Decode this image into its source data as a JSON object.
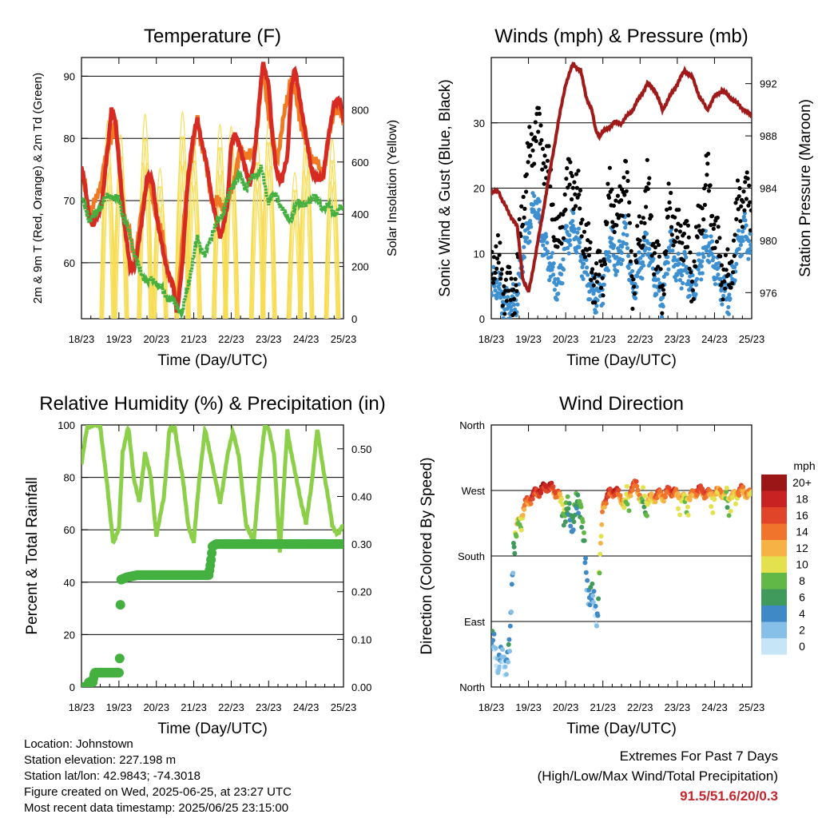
{
  "info": {
    "location": "Location: Johnstown",
    "elevation": "Station elevation: 227.198 m",
    "latlon": "Station lat/lon: 42.9843; -74.3018",
    "created": "Figure created on Wed, 2025-06-25, at 23:27 UTC",
    "timestamp": "Most recent data timestamp: 2025/06/25 23:15:00"
  },
  "extremes": {
    "line1": "Extremes For Past 7 Days",
    "line2": "(High/Low/Max Wind/Total Precipitation)",
    "values": "91.5/51.6/20/0.3"
  },
  "colors": {
    "temp_2m": "#d62a22",
    "temp_9m": "#f07a23",
    "dewpoint": "#44b040",
    "solar": "#f7dd55",
    "wind": "#3c8fd0",
    "gust": "#000000",
    "pressure": "#a01a1a",
    "rh": "#8cd04a",
    "precip": "#44b040"
  },
  "chart_data": [
    {
      "type": "line",
      "title": "Temperature (F)",
      "xlabel": "Time (Day/UTC)",
      "ylabel": "2m & 9m T (Red, Orange) & 2m Td (Green)",
      "y2label": "Solar Insolation (Yellow)",
      "x": [
        "18/23",
        "19/23",
        "20/23",
        "21/23",
        "22/23",
        "23/23",
        "24/23",
        "25/23"
      ],
      "xlim": [
        0,
        7
      ],
      "ylim": [
        51,
        93
      ],
      "y2lim": [
        0,
        1000
      ],
      "yticks": [
        60,
        70,
        80,
        90
      ],
      "y2ticks": [
        0,
        200,
        400,
        600,
        800
      ],
      "grid": true,
      "series": [
        {
          "name": "2m T",
          "axis": "left",
          "x": [
            0,
            0.1,
            0.2,
            0.3,
            0.4,
            0.55,
            0.7,
            0.8,
            0.9,
            1.0,
            1.15,
            1.3,
            1.45,
            1.6,
            1.75,
            1.9,
            2.05,
            2.2,
            2.35,
            2.45,
            2.55,
            2.7,
            2.85,
            2.95,
            3.1,
            3.3,
            3.5,
            3.7,
            3.9,
            4.0,
            4.1,
            4.25,
            4.4,
            4.5,
            4.6,
            4.75,
            4.85,
            5.0,
            5.1,
            5.2,
            5.35,
            5.5,
            5.6,
            5.7,
            5.85,
            6.0,
            6.15,
            6.3,
            6.45,
            6.6,
            6.75,
            6.9,
            7.0
          ],
          "y": [
            75.5,
            72,
            68,
            66,
            67,
            70,
            78,
            85,
            83,
            76,
            66,
            59,
            60,
            66,
            74,
            73,
            66,
            61,
            58,
            56,
            52,
            60,
            74,
            79,
            83,
            77,
            70,
            64,
            69,
            79,
            81,
            78,
            75,
            72,
            76,
            86,
            92,
            89,
            80,
            75,
            73,
            77,
            88,
            91,
            86,
            80,
            75,
            73,
            74,
            80,
            86,
            86,
            83
          ]
        },
        {
          "name": "9m T",
          "axis": "left",
          "x": [
            0,
            0.2,
            0.4,
            0.7,
            0.9,
            1.15,
            1.45,
            1.75,
            2.05,
            2.35,
            2.55,
            2.85,
            3.1,
            3.5,
            3.9,
            4.25,
            4.6,
            4.85,
            5.2,
            5.6,
            6.0,
            6.45,
            6.75,
            7.0
          ],
          "y": [
            75,
            68,
            70,
            78,
            83,
            67,
            61,
            74,
            67,
            58,
            53,
            74,
            83,
            70,
            69,
            78,
            77,
            91,
            76,
            90,
            79,
            74,
            85,
            83
          ]
        },
        {
          "name": "2m Td",
          "axis": "left",
          "x": [
            0,
            0.2,
            0.4,
            0.6,
            0.8,
            1.0,
            1.2,
            1.4,
            1.6,
            1.8,
            2.0,
            2.2,
            2.4,
            2.55,
            2.7,
            2.9,
            3.1,
            3.3,
            3.5,
            3.7,
            3.9,
            4.0,
            4.2,
            4.4,
            4.6,
            4.8,
            5.0,
            5.2,
            5.4,
            5.6,
            5.8,
            6.0,
            6.2,
            6.4,
            6.6,
            6.8,
            7.0
          ],
          "y": [
            70.5,
            67,
            68,
            70,
            71,
            70,
            66,
            62,
            58,
            57,
            57,
            55,
            54,
            53,
            52,
            58,
            64,
            61,
            65,
            67,
            70,
            72,
            74,
            72,
            74,
            75,
            70,
            71,
            68,
            67,
            70,
            69,
            71,
            69,
            69,
            68,
            69
          ]
        },
        {
          "name": "Solar",
          "axis": "right",
          "peaks_x": [
            0.7,
            1.05,
            1.7,
            2.1,
            2.7,
            3.0,
            3.7,
            4.0,
            4.7,
            5.0,
            5.7,
            6.0,
            6.7
          ],
          "peaks_y": [
            950,
            880,
            980,
            720,
            990,
            860,
            930,
            920,
            850,
            960,
            700,
            930,
            860
          ]
        }
      ]
    },
    {
      "type": "scatter",
      "title": "Winds (mph) & Pressure (mb)",
      "xlabel": "Time (Day/UTC)",
      "ylabel": "Sonic Wind & Gust (Blue, Black)",
      "y2label": "Station Pressure (Maroon)",
      "x": [
        "18/23",
        "19/23",
        "20/23",
        "21/23",
        "22/23",
        "23/23",
        "24/23",
        "25/23"
      ],
      "xlim": [
        0,
        7
      ],
      "ylim": [
        0,
        40
      ],
      "y2lim": [
        974,
        994
      ],
      "yticks": [
        0,
        10,
        20,
        30
      ],
      "y2ticks": [
        976,
        980,
        984,
        988,
        992
      ],
      "grid": true,
      "series": [
        {
          "name": "Wind",
          "axis": "left",
          "x": [
            0,
            0.1,
            0.3,
            0.5,
            0.7,
            0.85,
            1.0,
            1.2,
            1.4,
            1.6,
            1.8,
            2.0,
            2.2,
            2.4,
            2.6,
            2.8,
            3.0,
            3.2,
            3.4,
            3.6,
            3.8,
            4.0,
            4.2,
            4.4,
            4.6,
            4.8,
            5.0,
            5.2,
            5.4,
            5.6,
            5.8,
            6.0,
            6.2,
            6.4,
            6.6,
            6.8,
            7.0
          ],
          "y": [
            4,
            6,
            3,
            2,
            3,
            10,
            14,
            18,
            12,
            8,
            4,
            12,
            14,
            10,
            6,
            3,
            5,
            12,
            8,
            14,
            4,
            8,
            12,
            6,
            3,
            12,
            7,
            8,
            4,
            8,
            12,
            8,
            5,
            3,
            10,
            14,
            10
          ]
        },
        {
          "name": "Gust",
          "axis": "left",
          "x": [
            0,
            0.1,
            0.3,
            0.5,
            0.7,
            0.85,
            1.0,
            1.2,
            1.4,
            1.6,
            1.8,
            2.0,
            2.2,
            2.4,
            2.6,
            2.8,
            3.0,
            3.2,
            3.4,
            3.6,
            3.8,
            4.0,
            4.2,
            4.4,
            4.6,
            4.8,
            5.0,
            5.2,
            5.4,
            5.6,
            5.8,
            6.0,
            6.2,
            6.4,
            6.6,
            6.8,
            7.0
          ],
          "y": [
            8,
            10,
            6,
            4,
            6,
            18,
            24,
            30,
            26,
            20,
            10,
            20,
            22,
            16,
            10,
            6,
            8,
            20,
            14,
            24,
            6,
            12,
            20,
            10,
            5,
            18,
            12,
            14,
            6,
            14,
            22,
            14,
            8,
            5,
            16,
            20,
            16
          ]
        },
        {
          "name": "Pressure",
          "axis": "right",
          "x": [
            0,
            0.2,
            0.3,
            0.5,
            0.7,
            0.85,
            1.0,
            1.2,
            1.5,
            1.8,
            2.0,
            2.2,
            2.4,
            2.55,
            2.7,
            2.8,
            2.9,
            3.0,
            3.1,
            3.3,
            3.5,
            3.8,
            4.0,
            4.2,
            4.4,
            4.6,
            4.8,
            5.0,
            5.2,
            5.4,
            5.6,
            5.8,
            6.0,
            6.2,
            6.4,
            6.6,
            6.8,
            7.0
          ],
          "y": [
            983.6,
            983.8,
            983,
            982,
            981,
            977,
            976,
            979,
            984,
            989,
            992,
            993.5,
            993,
            991,
            990,
            988.5,
            988,
            988.3,
            988.5,
            989,
            989,
            990,
            991,
            992,
            991.5,
            990,
            991,
            992,
            993,
            992.5,
            991,
            990,
            991,
            991.5,
            991,
            990.5,
            990,
            989.5
          ]
        }
      ]
    },
    {
      "type": "line",
      "title": "Relative Humidity (%) & Precipitation (in)",
      "xlabel": "Time (Day/UTC)",
      "ylabel": "Percent & Total Rainfall",
      "x": [
        "18/23",
        "19/23",
        "20/23",
        "21/23",
        "22/23",
        "23/23",
        "24/23",
        "25/23"
      ],
      "xlim": [
        0,
        7
      ],
      "ylim": [
        0,
        100
      ],
      "y2lim": [
        0,
        0.55
      ],
      "yticks": [
        0,
        20,
        40,
        60,
        80,
        100
      ],
      "y2ticks": [
        "0.00",
        "0.10",
        "0.20",
        "0.30",
        "0.40",
        "0.50"
      ],
      "grid": true,
      "series": [
        {
          "name": "RH",
          "axis": "left",
          "x": [
            0,
            0.15,
            0.25,
            0.5,
            0.7,
            0.85,
            1.0,
            1.1,
            1.25,
            1.4,
            1.55,
            1.7,
            1.85,
            2.0,
            2.2,
            2.35,
            2.5,
            2.7,
            2.85,
            3.0,
            3.15,
            3.3,
            3.5,
            3.7,
            3.9,
            4.05,
            4.2,
            4.4,
            4.6,
            4.75,
            4.9,
            5.0,
            5.15,
            5.3,
            5.5,
            5.7,
            5.85,
            6.0,
            6.15,
            6.3,
            6.5,
            6.7,
            6.85,
            7.0
          ],
          "y": [
            85,
            99,
            100,
            100,
            75,
            55,
            60,
            90,
            99,
            80,
            70,
            90,
            80,
            58,
            72,
            99,
            98,
            80,
            62,
            55,
            80,
            98,
            85,
            70,
            88,
            98,
            88,
            62,
            55,
            80,
            100,
            99,
            88,
            52,
            98,
            82,
            72,
            62,
            78,
            98,
            80,
            62,
            58,
            62
          ]
        },
        {
          "name": "Precipitation",
          "axis": "right",
          "x": [
            0,
            0.15,
            0.2,
            0.3,
            0.35,
            0.5,
            0.7,
            0.9,
            1.0,
            1.02,
            1.03,
            1.05,
            1.2,
            1.5,
            2.0,
            2.5,
            3.0,
            3.4,
            3.45,
            3.5,
            3.6,
            4.0,
            5.0,
            6.0,
            7.0
          ],
          "y": [
            0,
            0,
            0.01,
            0.01,
            0.03,
            0.03,
            0.03,
            0.03,
            0.03,
            0.06,
            0.12,
            0.225,
            0.23,
            0.235,
            0.235,
            0.235,
            0.235,
            0.235,
            0.26,
            0.295,
            0.3,
            0.3,
            0.3,
            0.3,
            0.3
          ]
        }
      ]
    },
    {
      "type": "scatter",
      "title": "Wind Direction",
      "xlabel": "Time (Day/UTC)",
      "ylabel": "Direction (Colored By Speed)",
      "x": [
        "18/23",
        "19/23",
        "20/23",
        "21/23",
        "22/23",
        "23/23",
        "24/23",
        "25/23"
      ],
      "xlim": [
        0,
        7
      ],
      "ylim": [
        0,
        360
      ],
      "yticks": [
        "North",
        "East",
        "South",
        "West",
        "North"
      ],
      "legend_title": "mph",
      "legend_labels": [
        "0",
        "2",
        "4",
        "6",
        "8",
        "10",
        "12",
        "14",
        "16",
        "18",
        "20+"
      ],
      "legend_colors": [
        "#c6e6f7",
        "#86c0e8",
        "#3f89c6",
        "#3f9a5c",
        "#62b846",
        "#e3e24e",
        "#f7b246",
        "#f0742c",
        "#e0452a",
        "#c82222",
        "#9b1717"
      ],
      "grid": true,
      "series": [
        {
          "name": "Direction",
          "x": [
            0,
            0.15,
            0.3,
            0.5,
            0.6,
            0.7,
            0.8,
            0.9,
            1.0,
            1.1,
            1.2,
            1.35,
            1.5,
            1.65,
            1.8,
            2.0,
            2.2,
            2.4,
            2.55,
            2.7,
            2.85,
            3.0,
            3.15,
            3.3,
            3.45,
            3.6,
            3.75,
            3.9,
            4.05,
            4.2,
            4.35,
            4.5,
            4.65,
            4.8,
            4.95,
            5.1,
            5.25,
            5.4,
            5.55,
            5.7,
            5.85,
            6.0,
            6.15,
            6.3,
            6.5,
            6.7,
            6.9,
            7.0
          ],
          "y": [
            60,
            40,
            30,
            50,
            200,
            220,
            230,
            250,
            255,
            262,
            268,
            270,
            275,
            272,
            265,
            240,
            230,
            260,
            150,
            120,
            100,
            250,
            265,
            270,
            262,
            250,
            270,
            280,
            250,
            255,
            260,
            265,
            262,
            270,
            265,
            260,
            258,
            262,
            270,
            268,
            265,
            262,
            270,
            258,
            262,
            270,
            265,
            262
          ],
          "speed": [
            3,
            2,
            2,
            3,
            6,
            9,
            11,
            13,
            15,
            16,
            17,
            18,
            17,
            16,
            14,
            6,
            5,
            8,
            4,
            3,
            3,
            14,
            16,
            17,
            15,
            8,
            13,
            16,
            8,
            10,
            13,
            15,
            12,
            16,
            14,
            11,
            10,
            12,
            15,
            16,
            14,
            10,
            13,
            9,
            11,
            14,
            12,
            10
          ]
        }
      ]
    }
  ]
}
